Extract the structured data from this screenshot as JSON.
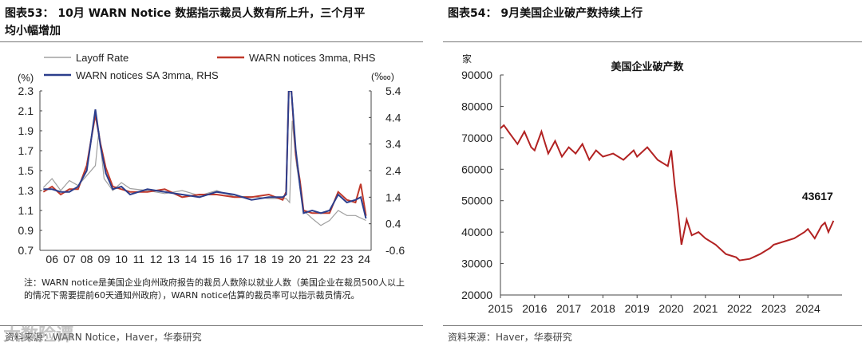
{
  "left": {
    "title_line1": "图表53： 10月 WARN Notice 数据指示裁员人数有所上升，三个月平",
    "title_line2": "均小幅增加",
    "note": "注：WARN notice是美国企业向州政府报告的裁员人数除以就业人数（美国企业在裁员500人以上的情况下需要提前60天通知州政府），WARN notice估算的裁员率可以指示裁员情况。",
    "source": "资料来源：WARN Notice，Haver，华泰研究"
  },
  "right": {
    "title": "图表54： 9月美国企业破产数持续上行",
    "source": "资料来源：Haver，华泰研究"
  },
  "watermark": "大数险谭",
  "chart_data": [
    {
      "type": "line",
      "legend_placement": "top",
      "ylabel_left": "(%)",
      "ylabel_right": "(‱)",
      "ylim": [
        0.7,
        2.3
      ],
      "yticks": [
        "2.3",
        "2.1",
        "1.9",
        "1.7",
        "1.5",
        "1.3",
        "1.1",
        "0.9",
        "0.7"
      ],
      "y2lim": [
        -0.6,
        5.4
      ],
      "y2ticks": [
        "5.4",
        "4.4",
        "3.4",
        "2.4",
        "1.4",
        "0.4",
        "-0.6"
      ],
      "xticks": [
        "06",
        "07",
        "08",
        "09",
        "10",
        "11",
        "12",
        "13",
        "14",
        "15",
        "16",
        "17",
        "18",
        "19",
        "20",
        "21",
        "22",
        "23",
        "24"
      ],
      "series": [
        {
          "name": "Layoff Rate",
          "axis": "left",
          "color": "#a0a0a0",
          "x": [
            2006,
            2006.5,
            2007,
            2007.5,
            2008,
            2008.5,
            2009,
            2009.2,
            2009.5,
            2010,
            2010.5,
            2011,
            2012,
            2013,
            2014,
            2015,
            2016,
            2017,
            2018,
            2019,
            2020,
            2020.2,
            2020.35,
            2020.6,
            2021,
            2021.5,
            2022,
            2022.5,
            2023,
            2023.5,
            2024,
            2024.6
          ],
          "y": [
            1.33,
            1.42,
            1.3,
            1.4,
            1.35,
            1.45,
            1.55,
            1.9,
            1.42,
            1.3,
            1.38,
            1.32,
            1.3,
            1.27,
            1.3,
            1.25,
            1.3,
            1.24,
            1.24,
            1.22,
            1.22,
            1.18,
            2.0,
            1.55,
            1.1,
            1.02,
            0.95,
            1.0,
            1.1,
            1.05,
            1.05,
            1.0
          ]
        },
        {
          "name": "WARN notices 3mma, RHS",
          "axis": "right",
          "color": "#c0392b",
          "x": [
            2006,
            2006.5,
            2007,
            2007.5,
            2008,
            2008.5,
            2009,
            2009.3,
            2009.6,
            2010,
            2010.5,
            2011,
            2012,
            2013,
            2014,
            2015,
            2016,
            2017,
            2018,
            2019,
            2019.8,
            2020,
            2020.15,
            2020.3,
            2020.55,
            2020.8,
            2021,
            2021.5,
            2022,
            2022.5,
            2023,
            2023.5,
            2024,
            2024.3,
            2024.6
          ],
          "y": [
            1.6,
            1.8,
            1.5,
            1.7,
            1.7,
            2.6,
            4.5,
            3.4,
            2.5,
            1.8,
            1.7,
            1.6,
            1.6,
            1.7,
            1.4,
            1.5,
            1.5,
            1.4,
            1.4,
            1.5,
            1.3,
            1.6,
            5.4,
            5.4,
            3.0,
            2.0,
            0.9,
            0.8,
            0.8,
            0.8,
            1.6,
            1.3,
            1.2,
            1.9,
            0.7
          ]
        },
        {
          "name": "WARN notices SA 3mma, RHS",
          "axis": "right",
          "color": "#2c3e8c",
          "x": [
            2006,
            2006.5,
            2007,
            2007.5,
            2008,
            2008.5,
            2009,
            2009.3,
            2009.6,
            2010,
            2010.5,
            2011,
            2012,
            2013,
            2014,
            2015,
            2016,
            2017,
            2018,
            2019,
            2019.8,
            2020,
            2020.15,
            2020.3,
            2020.55,
            2020.8,
            2021,
            2021.5,
            2022,
            2022.5,
            2023,
            2023.5,
            2024,
            2024.3,
            2024.6
          ],
          "y": [
            1.7,
            1.7,
            1.6,
            1.6,
            1.8,
            2.4,
            4.7,
            3.3,
            2.3,
            1.7,
            1.8,
            1.5,
            1.7,
            1.6,
            1.5,
            1.4,
            1.6,
            1.5,
            1.3,
            1.4,
            1.4,
            1.5,
            5.4,
            5.4,
            3.2,
            1.8,
            0.8,
            0.9,
            0.8,
            0.9,
            1.5,
            1.2,
            1.3,
            1.4,
            0.6
          ]
        }
      ]
    },
    {
      "type": "line",
      "title": "美国企业破产数",
      "ylabel": "家",
      "ylim": [
        20000,
        90000
      ],
      "yticks": [
        "90000",
        "80000",
        "70000",
        "60000",
        "50000",
        "40000",
        "30000",
        "20000"
      ],
      "xticks": [
        "2015",
        "2016",
        "2017",
        "2018",
        "2019",
        "2020",
        "2021",
        "2022",
        "2023",
        "2024"
      ],
      "last_label": "43617",
      "series": [
        {
          "color": "#b22222",
          "x": [
            2015,
            2015.1,
            2015.3,
            2015.5,
            2015.7,
            2015.9,
            2016,
            2016.2,
            2016.4,
            2016.6,
            2016.8,
            2017,
            2017.2,
            2017.4,
            2017.6,
            2017.8,
            2018,
            2018.3,
            2018.6,
            2018.9,
            2019,
            2019.3,
            2019.6,
            2019.9,
            2020,
            2020.1,
            2020.2,
            2020.3,
            2020.45,
            2020.6,
            2020.8,
            2021,
            2021.3,
            2021.6,
            2021.9,
            2022,
            2022.3,
            2022.6,
            2022.9,
            2023,
            2023.3,
            2023.6,
            2023.9,
            2024,
            2024.2,
            2024.4,
            2024.5,
            2024.6,
            2024.75
          ],
          "y": [
            73000,
            74000,
            71000,
            68000,
            72000,
            67000,
            66000,
            72000,
            65000,
            69000,
            64000,
            67000,
            65000,
            68000,
            63000,
            66000,
            64000,
            65000,
            63000,
            66000,
            64000,
            67000,
            63000,
            61000,
            66000,
            55000,
            46000,
            36000,
            44000,
            39000,
            40000,
            38000,
            36000,
            33000,
            32000,
            31000,
            31500,
            33000,
            35000,
            36000,
            37000,
            38000,
            40000,
            41000,
            38000,
            42000,
            43000,
            40000,
            43617
          ]
        }
      ]
    }
  ]
}
